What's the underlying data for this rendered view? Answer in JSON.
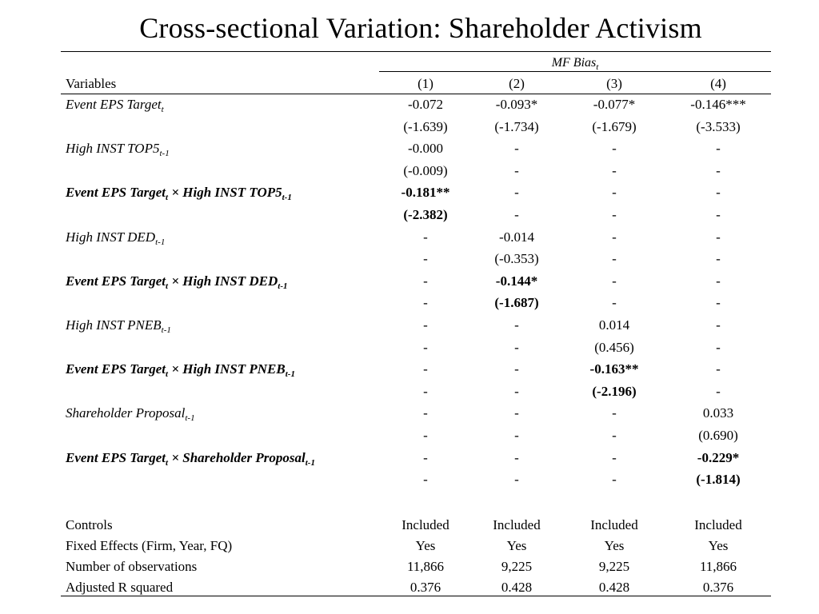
{
  "title": "Cross-sectional Variation: Shareholder Activism",
  "group_header": {
    "label": "MF Bias",
    "subscript": "t"
  },
  "variables_header": "Variables",
  "columns": [
    "(1)",
    "(2)",
    "(3)",
    "(4)"
  ],
  "rows": [
    {
      "label": "Event EPS Target",
      "sub": "t",
      "bold": false,
      "coef": [
        "-0.072",
        "-0.093*",
        "-0.077*",
        "-0.146***"
      ],
      "t": [
        "(-1.639)",
        "(-1.734)",
        "(-1.679)",
        "(-3.533)"
      ]
    },
    {
      "label": "High INST TOP5",
      "sub": "t-1",
      "bold": false,
      "coef": [
        "-0.000",
        "-",
        "-",
        "-"
      ],
      "t": [
        "(-0.009)",
        "-",
        "-",
        "-"
      ]
    },
    {
      "label": "Event EPS Target",
      "sub": "t",
      "label2": " × High INST TOP5",
      "sub2": "t-1",
      "bold": true,
      "coef": [
        "-0.181**",
        "-",
        "-",
        "-"
      ],
      "t": [
        "(-2.382)",
        "-",
        "-",
        "-"
      ]
    },
    {
      "label": "High INST DED",
      "sub": "t-1",
      "bold": false,
      "coef": [
        "-",
        "-0.014",
        "-",
        "-"
      ],
      "t": [
        "-",
        "(-0.353)",
        "-",
        "-"
      ]
    },
    {
      "label": "Event EPS Target",
      "sub": "t",
      "label2": " × High INST DED",
      "sub2": "t-1",
      "bold": true,
      "coef": [
        "-",
        "-0.144*",
        "-",
        "-"
      ],
      "t": [
        "-",
        "(-1.687)",
        "-",
        "-"
      ]
    },
    {
      "label": "High INST PNEB",
      "sub": "t-1",
      "bold": false,
      "coef": [
        "-",
        "-",
        "0.014",
        "-"
      ],
      "t": [
        "-",
        "-",
        "(0.456)",
        "-"
      ]
    },
    {
      "label": "Event EPS Target",
      "sub": "t",
      "label2": " × High INST PNEB",
      "sub2": "t-1",
      "bold": true,
      "coef": [
        "-",
        "-",
        "-0.163**",
        "-"
      ],
      "t": [
        "-",
        "-",
        "(-2.196)",
        "-"
      ]
    },
    {
      "label": "Shareholder Proposal",
      "sub": "t-1",
      "bold": false,
      "coef": [
        "-",
        "-",
        "-",
        "0.033"
      ],
      "t": [
        "-",
        "-",
        "-",
        "(0.690)"
      ]
    },
    {
      "label": "Event EPS Target",
      "sub": "t",
      "label2": " × Shareholder Proposal",
      "sub2": "t-1",
      "bold": true,
      "coef": [
        "-",
        "-",
        "-",
        "-0.229*"
      ],
      "t": [
        "-",
        "-",
        "-",
        "(-1.814)"
      ]
    }
  ],
  "bold_cells": [
    [
      2,
      0
    ],
    [
      4,
      1
    ],
    [
      6,
      2
    ],
    [
      8,
      3
    ]
  ],
  "footer": [
    {
      "label": "Controls",
      "values": [
        "Included",
        "Included",
        "Included",
        "Included"
      ]
    },
    {
      "label": "Fixed Effects (Firm, Year, FQ)",
      "values": [
        "Yes",
        "Yes",
        "Yes",
        "Yes"
      ]
    },
    {
      "label": "Number of observations",
      "values": [
        "11,866",
        "9,225",
        "9,225",
        "11,866"
      ]
    },
    {
      "label": "Adjusted R squared",
      "values": [
        "0.376",
        "0.428",
        "0.428",
        "0.376"
      ]
    }
  ]
}
